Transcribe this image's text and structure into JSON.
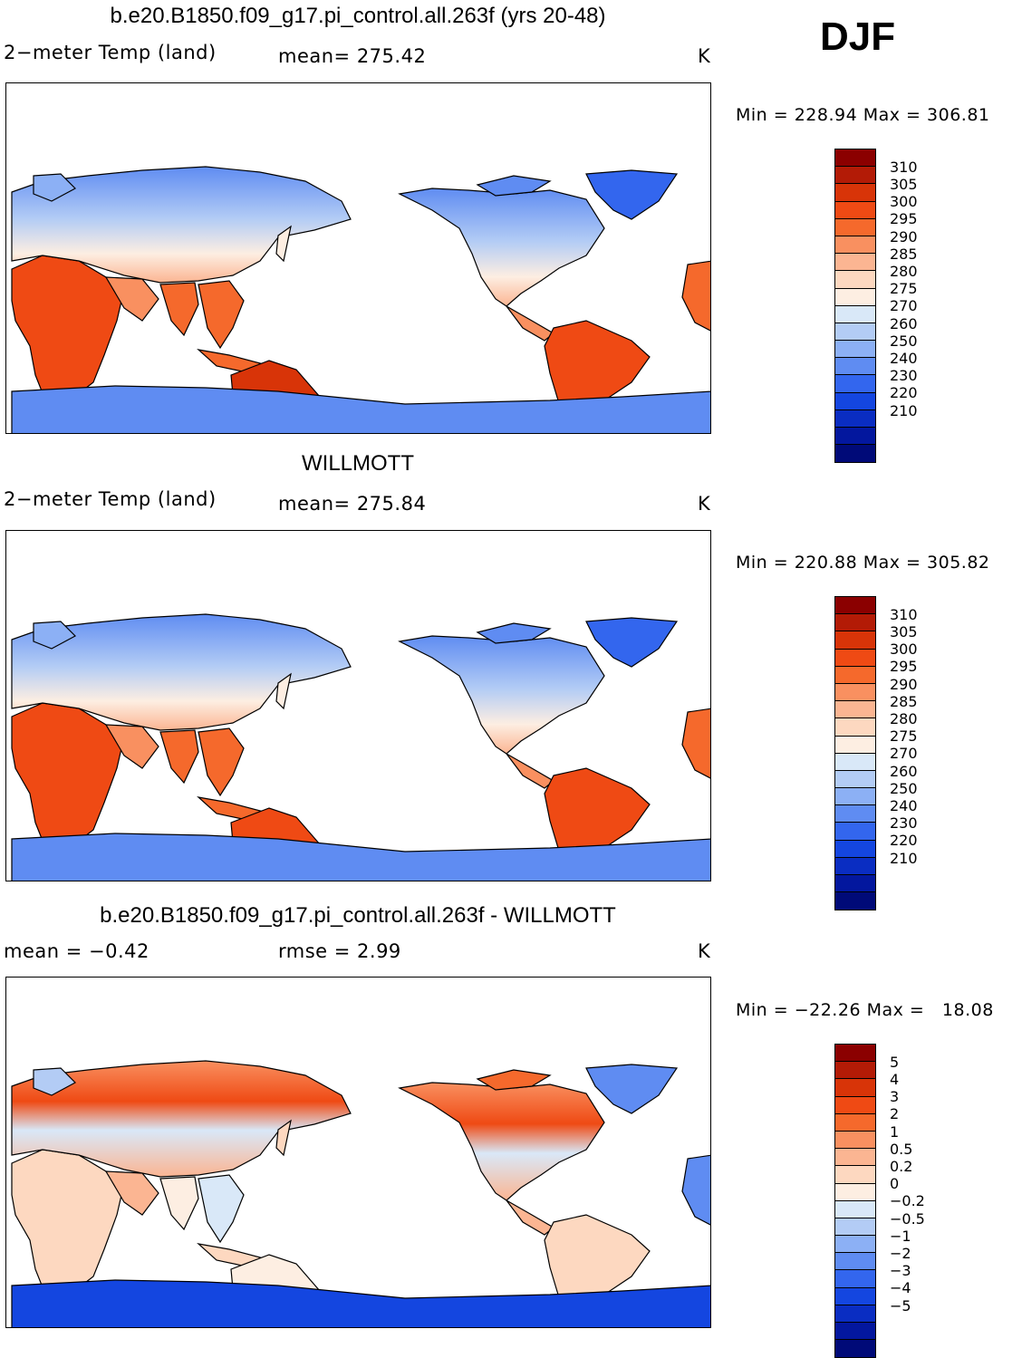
{
  "season": "DJF",
  "panels": [
    {
      "id": "model",
      "title": "b.e20.B1850.f09_g17.pi_control.all.263f (yrs 20-48)",
      "left_label": "2−meter Temp (land)",
      "stat_label": "mean= 275.42",
      "units": "K",
      "minmax": "Min = 228.94 Max = 306.81"
    },
    {
      "id": "obs",
      "title": "WILLMOTT",
      "left_label": "2−meter Temp (land)",
      "stat_label": "mean= 275.84",
      "units": "K",
      "minmax": "Min = 220.88 Max = 305.82"
    },
    {
      "id": "diff",
      "title": "b.e20.B1850.f09_g17.pi_control.all.263f - WILLMOTT",
      "left_label": "mean =    −0.42",
      "stat_label": "rmse =     2.99",
      "units": "K",
      "minmax": "Min = −22.26 Max =   18.08"
    }
  ],
  "chart_data": [
    {
      "type": "heatmap",
      "map": "global land 2-meter temperature, Pacific-centered",
      "title": "b.e20.B1850.f09_g17.pi_control.all.263f (yrs 20-48)",
      "variable": "2-meter Temp (land)",
      "mean": 275.42,
      "min": 228.94,
      "max": 306.81,
      "units": "K",
      "colorbar_levels": [
        310,
        305,
        300,
        295,
        290,
        285,
        280,
        275,
        270,
        260,
        250,
        240,
        230,
        220,
        210
      ],
      "colorbar_colors": [
        "#8b0000",
        "#b31b06",
        "#d83408",
        "#ef4a14",
        "#f5692c",
        "#f99060",
        "#fbb592",
        "#fdd8c0",
        "#fdeee2",
        "#d9e8f8",
        "#b3ccf5",
        "#8cb0f5",
        "#5f8cf2",
        "#3366ee",
        "#1446e0",
        "#0a2dc2",
        "#03179e",
        "#000a78"
      ]
    },
    {
      "type": "heatmap",
      "map": "global land 2-meter temperature, Pacific-centered",
      "title": "WILLMOTT",
      "variable": "2-meter Temp (land)",
      "mean": 275.84,
      "min": 220.88,
      "max": 305.82,
      "units": "K",
      "colorbar_levels": [
        310,
        305,
        300,
        295,
        290,
        285,
        280,
        275,
        270,
        260,
        250,
        240,
        230,
        220,
        210
      ],
      "colorbar_colors": [
        "#8b0000",
        "#b31b06",
        "#d83408",
        "#ef4a14",
        "#f5692c",
        "#f99060",
        "#fbb592",
        "#fdd8c0",
        "#fdeee2",
        "#d9e8f8",
        "#b3ccf5",
        "#8cb0f5",
        "#5f8cf2",
        "#3366ee",
        "#1446e0",
        "#0a2dc2",
        "#03179e",
        "#000a78"
      ]
    },
    {
      "type": "heatmap",
      "map": "model minus observations difference",
      "title": "b.e20.B1850.f09_g17.pi_control.all.263f - WILLMOTT",
      "mean": -0.42,
      "rmse": 2.99,
      "min": -22.26,
      "max": 18.08,
      "units": "K",
      "colorbar_levels": [
        "5",
        "4",
        "3",
        "2",
        "1",
        "0.5",
        "0.2",
        "0",
        "−0.2",
        "−0.5",
        "−1",
        "−2",
        "−3",
        "−4",
        "−5"
      ],
      "colorbar_colors": [
        "#8b0000",
        "#b31b06",
        "#d83408",
        "#ef4a14",
        "#f5692c",
        "#f99060",
        "#fbb592",
        "#fdd8c0",
        "#fdeee2",
        "#d9e8f8",
        "#b3ccf5",
        "#8cb0f5",
        "#5f8cf2",
        "#3366ee",
        "#1446e0",
        "#0a2dc2",
        "#03179e",
        "#000a78"
      ]
    }
  ]
}
